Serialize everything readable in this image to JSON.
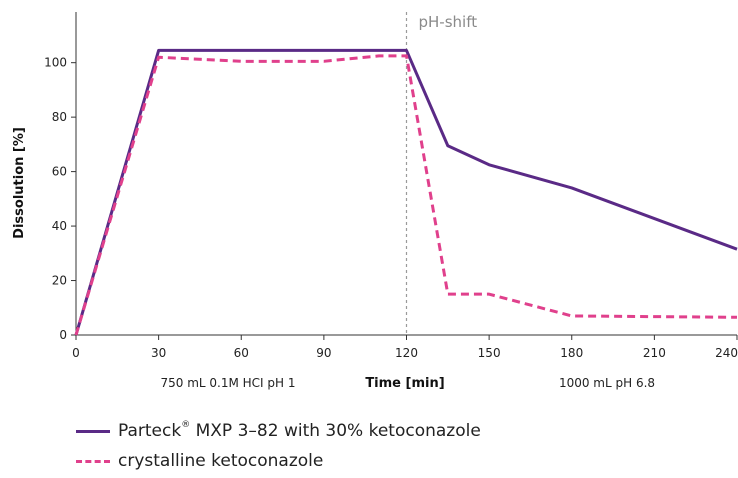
{
  "colors": {
    "series1": "#5a2a86",
    "series2": "#e0408c",
    "phshift": "#9a9a9a",
    "axis": "#333333"
  },
  "chart_data": {
    "type": "line",
    "title": "",
    "xlabel": "Time [min]",
    "ylabel": "Dissolution [%]",
    "xlim": [
      0,
      240
    ],
    "ylim": [
      0,
      112
    ],
    "xticks": [
      0,
      30,
      60,
      90,
      120,
      150,
      180,
      210,
      240
    ],
    "yticks": [
      0,
      20,
      40,
      60,
      80,
      100
    ],
    "grid": false,
    "legend_position": "bottom",
    "condition_labels": [
      "750 mL 0.1M HCI pH 1",
      "1000 mL pH 6.8"
    ],
    "annotation": {
      "label": "pH-shift",
      "x": 120
    },
    "series": [
      {
        "name_pre": "Parteck",
        "name_sup": "®",
        "name_post": " MXP 3–82 with 30% ketoconazole",
        "style": "solid",
        "x": [
          0,
          30,
          120,
          135,
          150,
          180,
          240
        ],
        "y": [
          0,
          104.5,
          104.5,
          69.5,
          62.5,
          54,
          31.5
        ]
      },
      {
        "name": "crystalline ketoconazole",
        "style": "dashed",
        "x": [
          0,
          30,
          60,
          90,
          110,
          120,
          135,
          150,
          180,
          240
        ],
        "y": [
          0,
          102,
          100.5,
          100.5,
          102.5,
          102.5,
          15,
          15,
          7,
          6.5
        ]
      }
    ]
  }
}
